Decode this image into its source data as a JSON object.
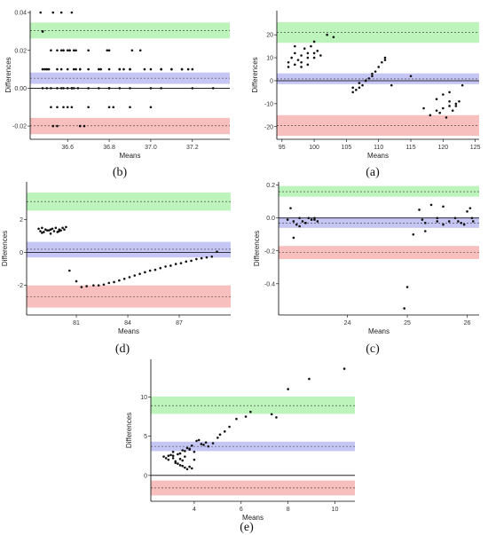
{
  "colors": {
    "upper_band": "#a6f0a6",
    "mean_band": "#b3b3f2",
    "lower_band": "#f5a9a9",
    "points": "#111111"
  },
  "chart_data": [
    {
      "id": "b",
      "caption": "(b)",
      "type": "scatter",
      "xlabel": "Means",
      "ylabel": "Differences",
      "xlim": [
        36.42,
        37.38
      ],
      "ylim": [
        -0.027,
        0.041
      ],
      "xticks": [
        36.6,
        36.8,
        37.0,
        37.2
      ],
      "xtick_labels": [
        "36.6",
        "36.8",
        "37.0",
        "37.2"
      ],
      "yticks": [
        -0.02,
        0.0,
        0.02,
        0.04
      ],
      "ytick_labels": [
        "-0.02",
        "0.00",
        "0.02",
        "0.04"
      ],
      "zero_line": 0.0,
      "bands": [
        {
          "kind": "upper_loa",
          "center": 0.0305,
          "low": 0.0263,
          "high": 0.0347
        },
        {
          "kind": "mean",
          "center": 0.0053,
          "low": 0.0023,
          "high": 0.0083
        },
        {
          "kind": "lower_loa",
          "center": -0.0199,
          "low": -0.0243,
          "high": -0.0157
        }
      ],
      "x": [
        36.47,
        36.53,
        36.57,
        36.62,
        36.48,
        36.49,
        36.5,
        36.51,
        36.55,
        36.58,
        36.6,
        36.61,
        36.63,
        36.64,
        36.66,
        36.7,
        36.75,
        36.79,
        36.8,
        36.85,
        36.9,
        36.91,
        36.95,
        36.97,
        37.0,
        37.05,
        37.1,
        37.15,
        37.18,
        37.2,
        36.48,
        36.5,
        36.55,
        36.57,
        36.6,
        36.63,
        36.7,
        36.76,
        36.8,
        36.85,
        36.87,
        36.9,
        37.05,
        37.1,
        37.15,
        36.48,
        36.5,
        36.52,
        36.55,
        36.57,
        36.58,
        36.6,
        36.62,
        36.63,
        36.65,
        36.7,
        36.75,
        36.8,
        36.85,
        36.9,
        37.0,
        37.05,
        37.2,
        37.3,
        36.52,
        36.55,
        36.58,
        36.6,
        36.62,
        36.7,
        36.8,
        36.9,
        36.53,
        36.55,
        36.66,
        36.68,
        36.48,
        36.52,
        36.57,
        36.58,
        36.61,
        36.64,
        36.66,
        36.8,
        36.82,
        37.0,
        36.62
      ],
      "y": [
        0.04,
        0.04,
        0.04,
        0.04,
        0.03,
        0.01,
        0.01,
        0.01,
        0.02,
        0.02,
        0.02,
        0.02,
        0.02,
        0.02,
        0.01,
        0.02,
        0.01,
        0.02,
        0.02,
        0.01,
        0.01,
        0.02,
        0.02,
        0.01,
        0.01,
        0.01,
        0.01,
        0.01,
        0.01,
        0.01,
        0.01,
        0.01,
        0.01,
        0.01,
        0.01,
        0.01,
        0.01,
        0.01,
        0.01,
        0.01,
        0.01,
        0.01,
        0.01,
        0.01,
        0.01,
        0.0,
        0.0,
        0.0,
        0.0,
        0.0,
        0.0,
        0.0,
        0.0,
        0.0,
        0.0,
        0.0,
        0.0,
        0.0,
        0.0,
        0.0,
        0.0,
        0.0,
        0.0,
        0.0,
        -0.01,
        -0.01,
        -0.01,
        -0.01,
        -0.01,
        -0.01,
        -0.01,
        -0.01,
        -0.02,
        -0.02,
        -0.02,
        -0.02,
        0.03,
        0.02,
        0.02,
        0.02,
        0.02,
        0.01,
        0.01,
        0.0,
        -0.01,
        -0.01,
        0.0
      ]
    },
    {
      "id": "a",
      "caption": "(a)",
      "type": "scatter",
      "xlabel": "Means",
      "ylabel": "Differences",
      "xlim": [
        94.2,
        125.6
      ],
      "ylim": [
        -25.5,
        30.5
      ],
      "xticks": [
        95,
        100,
        105,
        110,
        115,
        120,
        125
      ],
      "xtick_labels": [
        "95",
        "100",
        "105",
        "110",
        "115",
        "120",
        "125"
      ],
      "yticks": [
        -20,
        -10,
        0,
        10,
        20
      ],
      "ytick_labels": [
        "-20",
        "-10",
        "0",
        "10",
        "20"
      ],
      "zero_line": 0.0,
      "bands": [
        {
          "kind": "upper_loa",
          "center": 21.0,
          "low": 16.5,
          "high": 25.5
        },
        {
          "kind": "mean",
          "center": 0.8,
          "low": -1.5,
          "high": 3.2
        },
        {
          "kind": "lower_loa",
          "center": -19.5,
          "low": -24.0,
          "high": -15.0
        }
      ],
      "x": [
        96,
        96.5,
        97,
        97.5,
        98,
        98.5,
        99,
        99.5,
        100,
        100.5,
        101,
        102,
        103,
        96,
        97,
        98,
        99,
        100,
        98,
        99,
        100,
        97,
        106,
        106.5,
        107,
        107.5,
        108,
        108.5,
        109,
        109.5,
        110,
        110.5,
        111,
        112,
        106,
        107,
        108,
        109,
        111,
        115,
        117,
        118,
        119,
        119.5,
        120,
        120.5,
        121,
        121.5,
        122,
        122.5,
        123,
        119,
        120,
        121,
        122,
        121
      ],
      "y": [
        8,
        10,
        12,
        9,
        11,
        14,
        12,
        15,
        17,
        13,
        11,
        20,
        19,
        6,
        7,
        8,
        10,
        12,
        6,
        7,
        10,
        15,
        -5,
        -4,
        -3,
        -2,
        0,
        1,
        3,
        4,
        6,
        8,
        9,
        -2,
        -3,
        -1,
        0,
        2,
        10,
        2,
        -12,
        -15,
        -13,
        -14,
        -12,
        -16,
        -11,
        -13,
        -10,
        -9,
        -2,
        -8,
        -6,
        -5,
        -11,
        -9
      ]
    },
    {
      "id": "d",
      "caption": "(d)",
      "type": "scatter",
      "xlabel": "Means",
      "ylabel": "Differences",
      "xlim": [
        78.1,
        90.0
      ],
      "ylim": [
        -3.8,
        4.3
      ],
      "xticks": [
        81,
        84,
        87
      ],
      "xtick_labels": [
        "81",
        "84",
        "87"
      ],
      "yticks": [
        -2,
        0,
        2
      ],
      "ytick_labels": [
        "-2",
        "0",
        "2"
      ],
      "zero_line": 0.0,
      "bands": [
        {
          "kind": "upper_loa",
          "center": 3.1,
          "low": 2.55,
          "high": 3.65
        },
        {
          "kind": "mean",
          "center": 0.2,
          "low": -0.3,
          "high": 0.65
        },
        {
          "kind": "lower_loa",
          "center": -2.7,
          "low": -3.35,
          "high": -2.0
        }
      ],
      "x": [
        78.8,
        79.0,
        79.2,
        79.4,
        79.6,
        79.8,
        80.0,
        80.2,
        80.4,
        78.9,
        79.1,
        79.3,
        79.5,
        79.7,
        79.9,
        80.1,
        80.3,
        79.0,
        79.5,
        80.0,
        80.6,
        81.0,
        81.3,
        81.6,
        82.0,
        82.3,
        82.6,
        82.9,
        83.2,
        83.5,
        83.8,
        84.1,
        84.4,
        84.7,
        85.0,
        85.3,
        85.6,
        85.9,
        86.2,
        86.5,
        86.8,
        87.1,
        87.4,
        87.7,
        88.0,
        88.3,
        88.6,
        88.9,
        89.2
      ],
      "y": [
        1.45,
        1.5,
        1.4,
        1.35,
        1.45,
        1.5,
        1.4,
        1.5,
        1.55,
        1.3,
        1.25,
        1.35,
        1.4,
        1.3,
        1.25,
        1.35,
        1.4,
        1.2,
        1.15,
        1.3,
        -1.1,
        -1.75,
        -2.1,
        -2.05,
        -2.0,
        -2.0,
        -1.95,
        -1.85,
        -1.8,
        -1.7,
        -1.6,
        -1.5,
        -1.4,
        -1.3,
        -1.2,
        -1.1,
        -1.05,
        -0.95,
        -0.85,
        -0.8,
        -0.7,
        -0.65,
        -0.55,
        -0.5,
        -0.4,
        -0.35,
        -0.3,
        -0.25,
        0.05
      ]
    },
    {
      "id": "c",
      "caption": "(c)",
      "type": "scatter",
      "xlabel": "Means",
      "ylabel": "Differences",
      "xlim": [
        22.85,
        26.2
      ],
      "ylim": [
        -0.59,
        0.22
      ],
      "xticks": [
        24,
        25,
        26
      ],
      "xtick_labels": [
        "24",
        "25",
        "26"
      ],
      "yticks": [
        -0.4,
        -0.2,
        0.0,
        0.2
      ],
      "ytick_labels": [
        "-0.4",
        "-0.2",
        "0.0",
        "0.2"
      ],
      "zero_line": 0.0,
      "bands": [
        {
          "kind": "upper_loa",
          "center": 0.16,
          "low": 0.13,
          "high": 0.195
        },
        {
          "kind": "mean",
          "center": -0.03,
          "low": -0.06,
          "high": 0.005
        },
        {
          "kind": "lower_loa",
          "center": -0.21,
          "low": -0.25,
          "high": -0.17
        },
        {
          "kind": "lower_loa",
          "center": -0.21,
          "low": -0.25,
          "high": -0.17
        }
      ],
      "x": [
        23.0,
        23.05,
        23.1,
        23.15,
        23.2,
        23.25,
        23.3,
        23.35,
        23.4,
        23.45,
        23.5,
        23.1,
        23.2,
        23.3,
        23.45,
        24.95,
        25.0,
        25.1,
        25.2,
        25.3,
        25.4,
        25.5,
        25.6,
        25.7,
        25.8,
        25.9,
        26.0,
        26.05,
        26.1,
        25.3,
        25.5,
        25.6,
        25.95,
        26.08,
        25.85,
        25.25
      ],
      "y": [
        -0.01,
        0.06,
        -0.02,
        -0.04,
        0.0,
        -0.02,
        -0.03,
        0.0,
        -0.01,
        -0.01,
        -0.02,
        -0.12,
        -0.05,
        -0.03,
        0.0,
        -0.55,
        -0.42,
        -0.1,
        0.05,
        -0.03,
        0.08,
        -0.02,
        0.07,
        -0.02,
        0.0,
        -0.03,
        0.04,
        0.06,
        -0.02,
        -0.08,
        0.0,
        -0.04,
        -0.04,
        0.0,
        -0.02,
        -0.01
      ]
    },
    {
      "id": "e",
      "caption": "(e)",
      "type": "scatter",
      "xlabel": "Means",
      "ylabel": "Differences",
      "xlim": [
        2.15,
        10.85
      ],
      "ylim": [
        -3.3,
        14.8
      ],
      "xticks": [
        4,
        6,
        8,
        10
      ],
      "xtick_labels": [
        "4",
        "6",
        "8",
        "10"
      ],
      "yticks": [
        0,
        5,
        10
      ],
      "ytick_labels": [
        "0",
        "5",
        "10"
      ],
      "zero_line": 0.0,
      "bands": [
        {
          "kind": "upper_loa",
          "center": 8.9,
          "low": 7.85,
          "high": 10.05
        },
        {
          "kind": "mean",
          "center": 3.7,
          "low": 3.1,
          "high": 4.3
        },
        {
          "kind": "lower_loa",
          "center": -1.6,
          "low": -2.55,
          "high": -0.65
        }
      ],
      "x": [
        2.7,
        2.8,
        2.9,
        3.0,
        3.1,
        3.2,
        3.3,
        3.4,
        3.5,
        3.6,
        3.7,
        3.8,
        3.9,
        4.0,
        2.9,
        3.1,
        3.3,
        3.5,
        3.7,
        3.9,
        3.2,
        3.4,
        3.6,
        3.8,
        4.0,
        4.2,
        4.4,
        4.5,
        4.6,
        4.8,
        5.0,
        5.1,
        5.3,
        5.5,
        5.8,
        6.2,
        6.4,
        7.3,
        7.5,
        8.0,
        8.9,
        10.4,
        3.4,
        3.6,
        3.8,
        4.3,
        4.1,
        3.1,
        3.5
      ],
      "y": [
        2.4,
        2.2,
        2.0,
        2.6,
        2.5,
        1.8,
        1.5,
        1.3,
        1.2,
        1.0,
        0.8,
        1.1,
        0.9,
        2.0,
        2.5,
        3.0,
        2.7,
        3.2,
        3.5,
        3.8,
        1.6,
        2.1,
        2.4,
        3.3,
        3.0,
        4.5,
        3.9,
        4.2,
        3.7,
        4.1,
        4.8,
        5.2,
        5.6,
        6.2,
        7.2,
        7.5,
        8.1,
        7.8,
        7.4,
        11.0,
        12.3,
        13.6,
        2.8,
        3.1,
        3.4,
        4.0,
        4.4,
        2.2,
        1.9
      ]
    }
  ]
}
